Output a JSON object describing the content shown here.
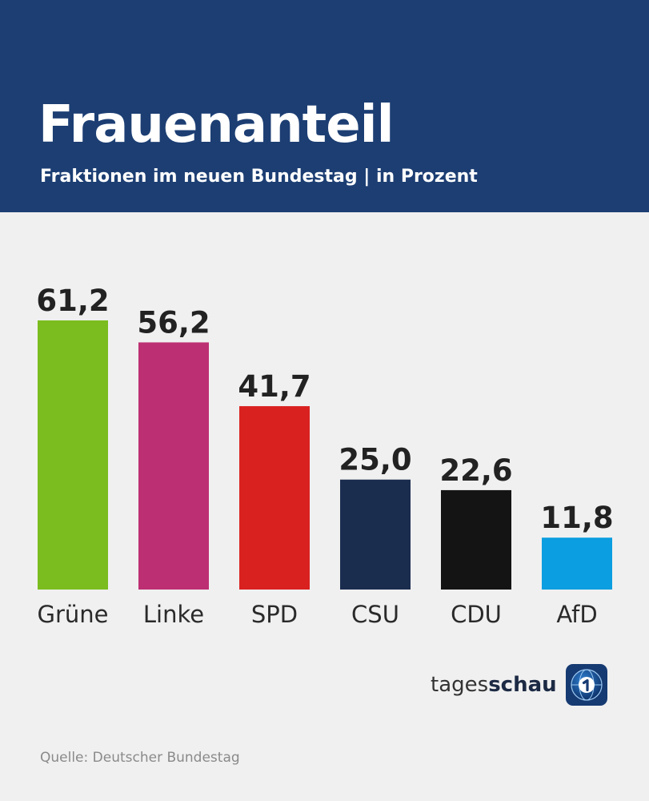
{
  "header": {
    "title": "Frauenanteil",
    "subtitle": "Fraktionen im neuen Bundestag | in Prozent"
  },
  "chart_data": {
    "type": "bar",
    "title": "Frauenanteil",
    "subtitle": "Fraktionen im neuen Bundestag | in Prozent",
    "categories": [
      "Grüne",
      "Linke",
      "SPD",
      "CSU",
      "CDU",
      "AfD"
    ],
    "values": [
      61.2,
      56.2,
      41.7,
      25.0,
      22.6,
      11.8
    ],
    "value_labels": [
      "61,2",
      "56,2",
      "41,7",
      "25,0",
      "22,6",
      "11,8"
    ],
    "colors": [
      "#7bbd1e",
      "#bd2f73",
      "#d92120",
      "#1b2d4f",
      "#141414",
      "#0b9ee0"
    ],
    "xlabel": "",
    "ylabel": "",
    "ylim": [
      0,
      61.2
    ],
    "grid": false,
    "legend": "none"
  },
  "logo": {
    "text_light": "tages",
    "text_bold": "schau",
    "icon": "tagesschau-globe-icon"
  },
  "source": {
    "text": "Quelle: Deutscher Bundestag"
  }
}
